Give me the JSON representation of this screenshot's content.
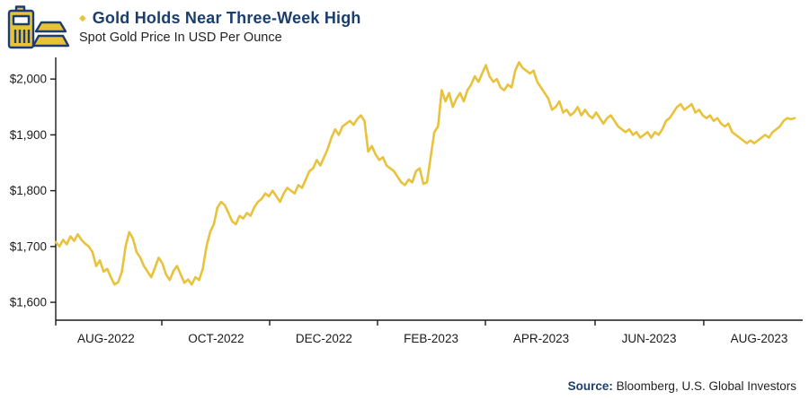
{
  "header": {
    "bullet": "◆",
    "title": "Gold Holds Near Three-Week High",
    "subtitle": "Spot Gold Price In USD Per Ounce"
  },
  "footer": {
    "source_label": "Source:",
    "source_text": " Bloomberg, U.S. Global Investors"
  },
  "colors": {
    "gold": "#E9C23C",
    "navy": "#1C3E6E",
    "axis": "#1A1A1A"
  },
  "icons": {
    "gold_bars": "gold-bars-icon",
    "bullet": "diamond-bullet"
  },
  "chart_data": {
    "type": "line",
    "title": "Gold Holds Near Three-Week High",
    "subtitle": "Spot Gold Price In USD Per Ounce",
    "xlabel": "",
    "ylabel": "Spot gold price (USD per ounce)",
    "grid": false,
    "legend": false,
    "y_ticks": [
      1600,
      1700,
      1800,
      1900,
      2000
    ],
    "y_tick_labels": [
      "$1,600",
      "$1,700",
      "$1,800",
      "$1,900",
      "$2,000"
    ],
    "y_range": [
      1568,
      2042
    ],
    "x_labels": [
      {
        "label": "AUG-2022",
        "pos": 0.068
      },
      {
        "label": "OCT-2022",
        "pos": 0.217
      },
      {
        "label": "DEC-2022",
        "pos": 0.363
      },
      {
        "label": "FEB-2023",
        "pos": 0.508
      },
      {
        "label": "APR-2023",
        "pos": 0.657
      },
      {
        "label": "JUN-2023",
        "pos": 0.803
      },
      {
        "label": "AUG-2023",
        "pos": 0.952
      }
    ],
    "x_minor_ticks": [
      0,
      0.1436,
      0.2895,
      0.4355,
      0.5815,
      0.7299,
      0.877
    ],
    "x_span": "mid-July 2022 to early September 2023",
    "series": [
      {
        "name": "Spot Gold (USD/oz)",
        "values": [
          1708,
          1700,
          1712,
          1704,
          1718,
          1710,
          1722,
          1712,
          1705,
          1700,
          1690,
          1665,
          1675,
          1655,
          1660,
          1645,
          1632,
          1636,
          1655,
          1700,
          1726,
          1714,
          1690,
          1680,
          1665,
          1655,
          1645,
          1662,
          1680,
          1670,
          1650,
          1640,
          1656,
          1665,
          1650,
          1635,
          1641,
          1632,
          1645,
          1640,
          1660,
          1700,
          1726,
          1740,
          1770,
          1780,
          1774,
          1760,
          1745,
          1740,
          1755,
          1750,
          1760,
          1755,
          1770,
          1780,
          1785,
          1795,
          1790,
          1800,
          1790,
          1780,
          1795,
          1805,
          1800,
          1795,
          1810,
          1805,
          1820,
          1835,
          1840,
          1855,
          1845,
          1860,
          1875,
          1895,
          1910,
          1900,
          1915,
          1920,
          1925,
          1918,
          1928,
          1935,
          1925,
          1870,
          1880,
          1865,
          1855,
          1860,
          1845,
          1840,
          1835,
          1825,
          1815,
          1810,
          1820,
          1815,
          1835,
          1840,
          1812,
          1815,
          1860,
          1905,
          1915,
          1980,
          1960,
          1975,
          1950,
          1965,
          1975,
          1960,
          1980,
          1990,
          2005,
          1995,
          2010,
          2025,
          2005,
          1995,
          2000,
          1985,
          1980,
          1990,
          1985,
          2015,
          2030,
          2020,
          2015,
          2010,
          2015,
          1995,
          1985,
          1975,
          1965,
          1945,
          1950,
          1960,
          1940,
          1945,
          1935,
          1940,
          1950,
          1935,
          1945,
          1935,
          1930,
          1940,
          1930,
          1920,
          1930,
          1935,
          1925,
          1915,
          1910,
          1905,
          1910,
          1900,
          1905,
          1895,
          1900,
          1905,
          1895,
          1905,
          1900,
          1910,
          1925,
          1930,
          1940,
          1950,
          1955,
          1945,
          1950,
          1955,
          1940,
          1945,
          1935,
          1930,
          1935,
          1925,
          1930,
          1920,
          1915,
          1920,
          1905,
          1900,
          1895,
          1890,
          1885,
          1890,
          1885,
          1890,
          1895,
          1900,
          1895,
          1905,
          1910,
          1915,
          1925,
          1930,
          1928,
          1930
        ]
      }
    ]
  }
}
